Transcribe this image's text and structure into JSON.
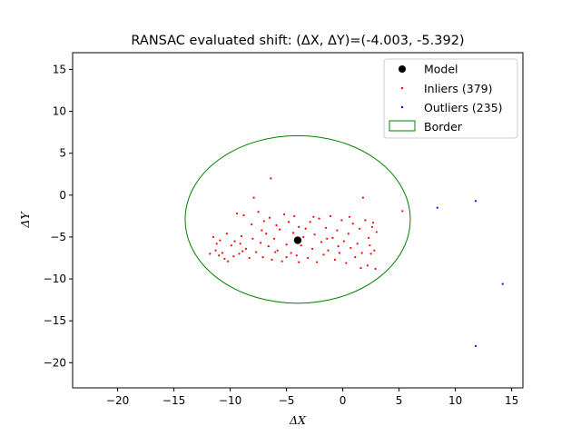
{
  "chart_data": {
    "type": "scatter",
    "title": "RANSAC evaluated shift: (ΔX, ΔY)=(-4.003, -5.392)",
    "xlabel": "ΔX",
    "ylabel": "ΔY",
    "xlim": [
      -24,
      16
    ],
    "ylim": [
      -23,
      17
    ],
    "xticks": [
      -20,
      -15,
      -10,
      -5,
      0,
      5,
      10,
      15
    ],
    "yticks": [
      -20,
      -15,
      -10,
      -5,
      0,
      5,
      10,
      15
    ],
    "grid": false,
    "legend_position": "top-right",
    "series": [
      {
        "name": "Model",
        "color": "#000000",
        "marker": "large-dot",
        "points": [
          [
            -4.003,
            -5.392
          ]
        ]
      },
      {
        "name": "Inliers (379)",
        "color": "#ff0000",
        "marker": "small-dot",
        "points": [
          [
            -11.8,
            -7.0
          ],
          [
            -11.5,
            -5.0
          ],
          [
            -11.3,
            -6.6
          ],
          [
            -11.0,
            -7.2
          ],
          [
            -10.9,
            -5.4
          ],
          [
            -10.7,
            -6.9
          ],
          [
            -10.5,
            -7.6
          ],
          [
            -10.3,
            -4.6
          ],
          [
            -9.9,
            -6.0
          ],
          [
            -9.7,
            -7.3
          ],
          [
            -9.6,
            -5.5
          ],
          [
            -9.4,
            -2.2
          ],
          [
            -9.2,
            -7.0
          ],
          [
            -9.1,
            -5.8
          ],
          [
            -9.0,
            -4.9
          ],
          [
            -8.8,
            -2.4
          ],
          [
            -8.6,
            -6.4
          ],
          [
            -8.3,
            -7.5
          ],
          [
            -8.1,
            -3.5
          ],
          [
            -8.0,
            -5.2
          ],
          [
            -7.9,
            -0.3
          ],
          [
            -7.7,
            -6.8
          ],
          [
            -7.5,
            -2.0
          ],
          [
            -7.3,
            -5.7
          ],
          [
            -7.1,
            -7.4
          ],
          [
            -7.0,
            -3.1
          ],
          [
            -6.8,
            -4.6
          ],
          [
            -6.6,
            -6.1
          ],
          [
            -6.5,
            -2.7
          ],
          [
            -6.3,
            -7.7
          ],
          [
            -6.1,
            -5.2
          ],
          [
            -5.9,
            -3.6
          ],
          [
            -5.8,
            -6.6
          ],
          [
            -5.6,
            -4.1
          ],
          [
            -5.4,
            -7.9
          ],
          [
            -5.2,
            -2.3
          ],
          [
            -5.0,
            -5.9
          ],
          [
            -4.8,
            -3.2
          ],
          [
            -4.6,
            -6.9
          ],
          [
            -4.4,
            -4.5
          ],
          [
            -4.3,
            -2.5
          ],
          [
            -4.1,
            -7.2
          ],
          [
            -3.9,
            -3.8
          ],
          [
            -3.7,
            -6.0
          ],
          [
            -3.5,
            -5.0
          ],
          [
            -3.3,
            -4.0
          ],
          [
            -3.1,
            -7.5
          ],
          [
            -2.9,
            -3.2
          ],
          [
            -2.7,
            -6.4
          ],
          [
            -2.5,
            -4.7
          ],
          [
            -2.3,
            -8.0
          ],
          [
            -2.1,
            -2.8
          ],
          [
            -1.9,
            -5.6
          ],
          [
            -1.7,
            -7.1
          ],
          [
            -1.5,
            -3.9
          ],
          [
            -1.3,
            -6.6
          ],
          [
            -1.1,
            -2.5
          ],
          [
            -0.9,
            -5.1
          ],
          [
            -0.7,
            -7.7
          ],
          [
            -0.5,
            -4.2
          ],
          [
            -0.3,
            -6.9
          ],
          [
            -0.1,
            -3.0
          ],
          [
            0.1,
            -5.5
          ],
          [
            0.3,
            -8.1
          ],
          [
            0.5,
            -4.6
          ],
          [
            0.7,
            -6.3
          ],
          [
            0.9,
            -3.4
          ],
          [
            1.1,
            -7.4
          ],
          [
            1.3,
            -5.8
          ],
          [
            1.5,
            -4.0
          ],
          [
            1.7,
            -6.9
          ],
          [
            1.8,
            -0.3
          ],
          [
            2.0,
            -3.0
          ],
          [
            2.2,
            -8.4
          ],
          [
            2.3,
            -5.1
          ],
          [
            2.5,
            -7.0
          ],
          [
            2.6,
            -3.8
          ],
          [
            2.8,
            -6.6
          ],
          [
            2.9,
            -8.8
          ],
          [
            3.0,
            -4.4
          ],
          [
            -6.4,
            2.0
          ],
          [
            5.3,
            -1.9
          ],
          [
            -10.2,
            -7.9
          ],
          [
            -8.9,
            -6.7
          ],
          [
            -7.2,
            -4.2
          ],
          [
            -6.0,
            -6.8
          ],
          [
            -5.0,
            -7.4
          ],
          [
            -3.9,
            -8.0
          ],
          [
            -2.6,
            -2.6
          ],
          [
            -1.4,
            -5.2
          ],
          [
            -0.4,
            -6.1
          ],
          [
            0.6,
            -2.6
          ],
          [
            1.6,
            -8.7
          ],
          [
            2.4,
            -6.0
          ],
          [
            2.7,
            -3.3
          ],
          [
            -11.2,
            -5.8
          ]
        ]
      },
      {
        "name": "Outliers (235)",
        "color": "#0000ff",
        "marker": "small-dot",
        "points": [
          [
            8.4,
            -1.5
          ],
          [
            11.8,
            -0.7
          ],
          [
            14.2,
            -10.6
          ],
          [
            11.8,
            -18.0
          ]
        ]
      }
    ],
    "border": {
      "name": "Border",
      "color": "#008000",
      "shape": "ellipse",
      "center": [
        -4.003,
        -2.9
      ],
      "radius_x": 10.0,
      "radius_y": 10.0
    }
  }
}
